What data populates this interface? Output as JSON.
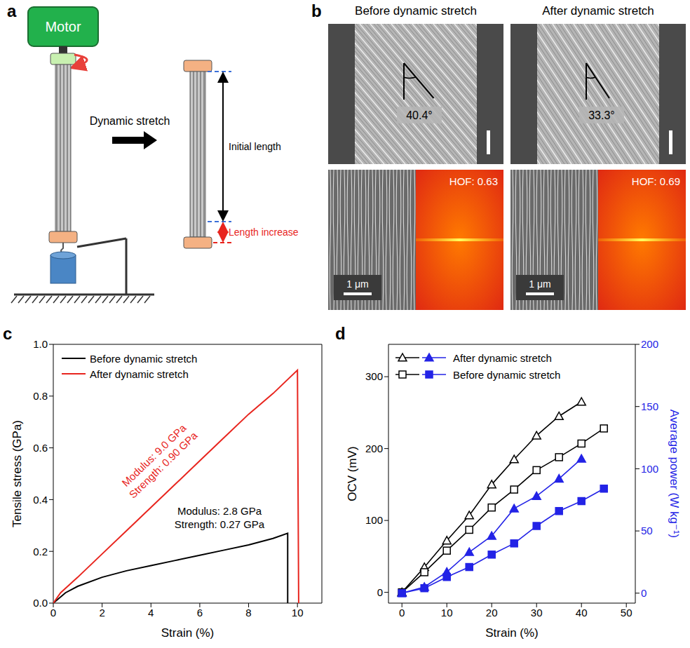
{
  "panel_a": {
    "letter": "a",
    "motor": "Motor",
    "arrow": "Dynamic stretch",
    "initial_length": "Initial length",
    "length_increase": "Length increase"
  },
  "panel_b": {
    "letter": "b",
    "columns": [
      {
        "title": "Before dynamic stretch",
        "twist_angle": "40.4°",
        "scale_bar": "1 μm",
        "hof": "HOF: 0.63"
      },
      {
        "title": "After dynamic stretch",
        "twist_angle": "33.3°",
        "scale_bar": "1 μm",
        "hof": "HOF: 0.69"
      }
    ]
  },
  "chart_data": [
    {
      "letter": "c",
      "type": "line",
      "x_label": "Strain (%)",
      "y_label": "Tensile stress (GPa)",
      "xlim": [
        0,
        11
      ],
      "xticks": [
        0,
        2,
        4,
        6,
        8,
        10
      ],
      "ylim": [
        0,
        1.0
      ],
      "yticks": [
        {
          "value": 0,
          "label": "0.0"
        },
        0.2,
        0.4,
        0.6,
        0.8,
        {
          "value": 1.0,
          "label": "1.0"
        }
      ],
      "grid": false,
      "legend": "upper left",
      "series": [
        {
          "name": "Before dynamic stretch",
          "color": "#000000",
          "marker": "none",
          "x": [
            0,
            0.5,
            1,
            2,
            3,
            4,
            5,
            6,
            7,
            8,
            9,
            9.6,
            9.6
          ],
          "values": [
            0,
            0.04,
            0.065,
            0.1,
            0.125,
            0.145,
            0.165,
            0.185,
            0.205,
            0.225,
            0.25,
            0.27,
            0
          ]
        },
        {
          "name": "After dynamic stretch",
          "color": "#e8251e",
          "marker": "none",
          "x": [
            0,
            0.3,
            1,
            2,
            3,
            4,
            5,
            6,
            7,
            8,
            9,
            10,
            10.05
          ],
          "values": [
            0,
            0.04,
            0.1,
            0.19,
            0.28,
            0.37,
            0.46,
            0.55,
            0.64,
            0.73,
            0.81,
            0.9,
            0
          ]
        }
      ],
      "annotations": [
        {
          "lines": [
            "Modulus: 9.0 GPa",
            "Strength: 0.90 GPa"
          ],
          "color": "#e8251e"
        },
        {
          "lines": [
            "Modulus: 2.8 GPa",
            "Strength: 0.27 GPa"
          ],
          "color": "#000000"
        }
      ]
    },
    {
      "letter": "d",
      "type": "line",
      "x_label": "Strain (%)",
      "y_label": "OCV (mV)",
      "y2_label": "Average power (W kg⁻¹)",
      "xlim": [
        -3,
        52
      ],
      "xticks": [
        0,
        10,
        20,
        30,
        40,
        50
      ],
      "ylim": [
        -15,
        345
      ],
      "yticks": [
        0,
        100,
        200,
        300
      ],
      "y2lim": [
        -8,
        200
      ],
      "y2ticks": [
        0,
        50,
        100,
        150,
        200
      ],
      "grid": false,
      "legend": "upper left",
      "series": [
        {
          "name": "After dynamic stretch",
          "color": "#000000",
          "marker": "open_triangle",
          "x": [
            0,
            5,
            10,
            15,
            20,
            25,
            30,
            35,
            40
          ],
          "values": [
            0,
            35,
            72,
            107,
            150,
            185,
            218,
            245,
            265
          ]
        },
        {
          "name": "After dynamic stretch",
          "color": "#2323e6",
          "marker": "filled_triangle",
          "axis": "y2",
          "x": [
            0,
            5,
            10,
            15,
            20,
            25,
            30,
            35,
            40
          ],
          "values": [
            0,
            5,
            17,
            33,
            46,
            68,
            78,
            92,
            108
          ]
        },
        {
          "name": "Before dynamic stretch",
          "color": "#000000",
          "marker": "open_square",
          "x": [
            0,
            5,
            10,
            15,
            20,
            25,
            30,
            35,
            40,
            45
          ],
          "values": [
            0,
            28,
            58,
            87,
            118,
            143,
            170,
            188,
            207,
            228
          ]
        },
        {
          "name": "Before dynamic stretch",
          "color": "#2323e6",
          "marker": "filled_square",
          "axis": "y2",
          "x": [
            0,
            5,
            10,
            15,
            20,
            25,
            30,
            35,
            40,
            45
          ],
          "values": [
            0,
            4,
            13,
            21,
            31,
            40,
            54,
            66,
            74,
            84
          ]
        }
      ]
    }
  ]
}
